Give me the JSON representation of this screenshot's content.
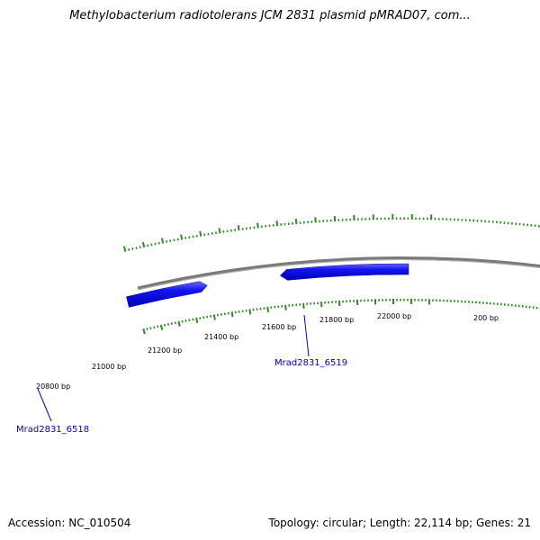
{
  "title": "Methylobacterium radiotolerans JCM 2831 plasmid pMRAD07, com...",
  "footer": {
    "accession": "Accession: NC_010504",
    "summary": "Topology: circular; Length: 22,114 bp; Genes: 21"
  },
  "map": {
    "total_length_bp": 22114,
    "backbone_color": "#808080",
    "gene_color": "#1010ee",
    "tick_color": "#2e8b22",
    "label_color": "#0000cc",
    "position_labels": [
      {
        "bp": 20800,
        "text": "20800 bp"
      },
      {
        "bp": 21000,
        "text": "21000 bp"
      },
      {
        "bp": 21200,
        "text": "21200 bp"
      },
      {
        "bp": 21400,
        "text": "21400 bp"
      },
      {
        "bp": 21600,
        "text": "21600 bp"
      },
      {
        "bp": 21800,
        "text": "21800 bp"
      },
      {
        "bp": 22000,
        "text": "22000 bp"
      },
      {
        "bp": 200,
        "text": "200 bp"
      }
    ],
    "genes": [
      {
        "name": "Mrad2831_6518",
        "strand": "forward"
      },
      {
        "name": "Mrad2831_6519",
        "strand": "reverse"
      }
    ]
  }
}
